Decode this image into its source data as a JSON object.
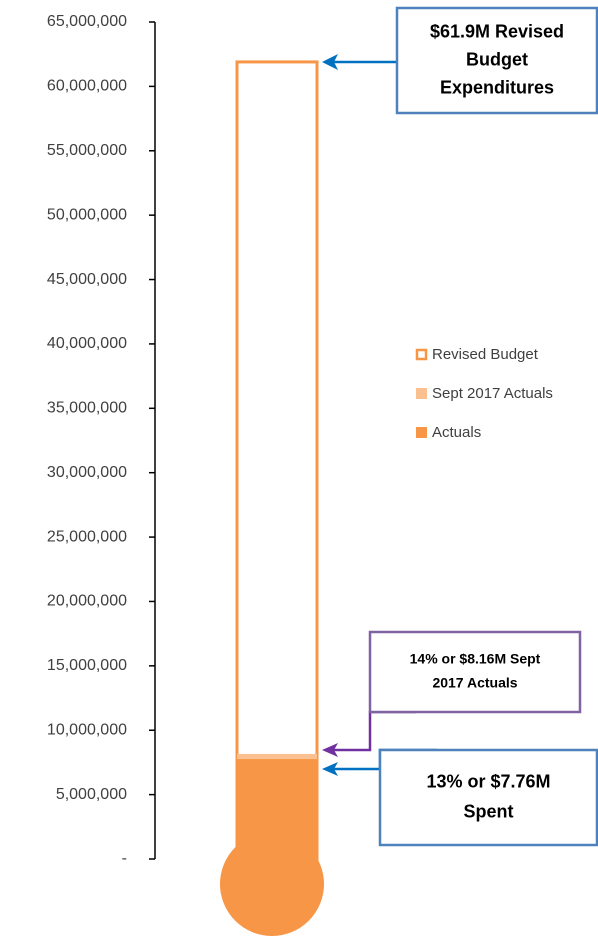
{
  "chart_data": {
    "type": "thermometer",
    "ylim": [
      0,
      65000000
    ],
    "yticks": [
      {
        "value": 0,
        "label": "-"
      },
      {
        "value": 5000000,
        "label": "5,000,000"
      },
      {
        "value": 10000000,
        "label": "10,000,000"
      },
      {
        "value": 15000000,
        "label": "15,000,000"
      },
      {
        "value": 20000000,
        "label": "20,000,000"
      },
      {
        "value": 25000000,
        "label": "25,000,000"
      },
      {
        "value": 30000000,
        "label": "30,000,000"
      },
      {
        "value": 35000000,
        "label": "35,000,000"
      },
      {
        "value": 40000000,
        "label": "40,000,000"
      },
      {
        "value": 45000000,
        "label": "45,000,000"
      },
      {
        "value": 50000000,
        "label": "50,000,000"
      },
      {
        "value": 55000000,
        "label": "55,000,000"
      },
      {
        "value": 60000000,
        "label": "60,000,000"
      },
      {
        "value": 65000000,
        "label": "65,000,000"
      }
    ],
    "series": [
      {
        "name": "Revised Budget",
        "color": "#f79646",
        "style": "outline",
        "values": [
          61900000
        ]
      },
      {
        "name": "Sept 2017 Actuals",
        "color": "#fac08f",
        "style": "fill",
        "values": [
          8160000
        ]
      },
      {
        "name": "Actuals",
        "color": "#f79646",
        "style": "fill",
        "values": [
          7760000
        ]
      }
    ],
    "annotations": [
      {
        "lines": [
          "$61.9M Revised",
          "Budget",
          "Expenditures"
        ],
        "color": "#4f81bd"
      },
      {
        "lines": [
          "14% or $8.16M Sept",
          "2017 Actuals"
        ],
        "color": "#8064a2"
      },
      {
        "lines": [
          "13% or $7.76M",
          "Spent"
        ],
        "color": "#4f81bd"
      }
    ]
  }
}
